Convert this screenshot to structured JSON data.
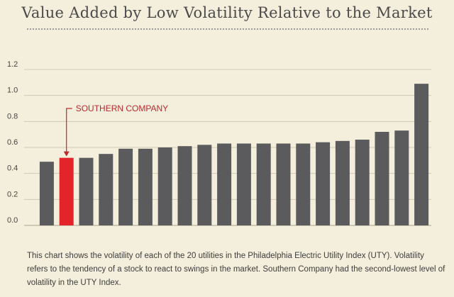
{
  "title": "Value Added by Low Volatility Relative to the Market",
  "caption": "This chart shows the volatility of each of the 20 utilities in the Philadelphia Electric Utility Index (UTY). Volatility refers to the tendency of a stock to react to swings in the market. Southern Company had the second-lowest level of volatility in the UTY Index.",
  "colors": {
    "bar": "#5b5b5d",
    "highlight": "#e3242b",
    "annotation": "#c0282d",
    "grid": "#cfc9b4"
  },
  "chart_data": {
    "type": "bar",
    "values": [
      0.49,
      0.52,
      0.52,
      0.55,
      0.59,
      0.59,
      0.6,
      0.61,
      0.62,
      0.63,
      0.63,
      0.63,
      0.63,
      0.63,
      0.64,
      0.65,
      0.66,
      0.72,
      0.73,
      1.09
    ],
    "highlight_index": 1,
    "annotation": "SOUTHERN COMPANY",
    "yticks": [
      "0.0",
      "0.2",
      "0.4",
      "0.6",
      "0.8",
      "1.0",
      "1.2"
    ],
    "ylim": [
      0,
      1.2
    ],
    "grid": true
  }
}
